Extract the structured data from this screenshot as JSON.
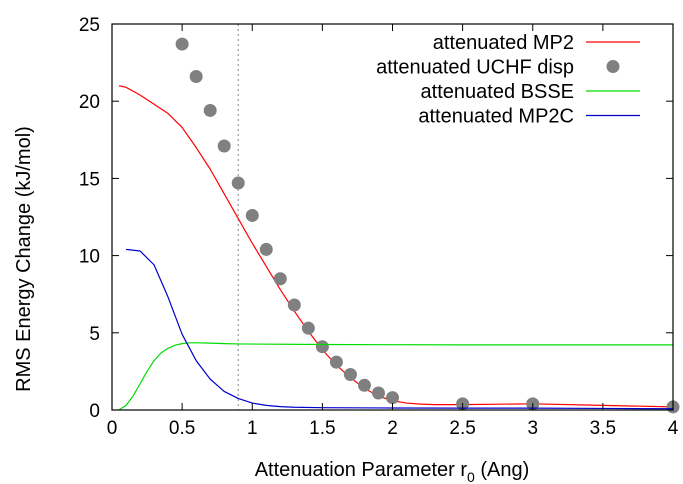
{
  "chart_data": {
    "type": "line",
    "title": "",
    "xlabel": "Attenuation Parameter r",
    "xlabel_subscript": "0",
    "xlabel_suffix": " (Ang)",
    "ylabel": "RMS Energy Change (kJ/mol)",
    "xlim": [
      0,
      4
    ],
    "ylim": [
      0,
      25
    ],
    "xticks": [
      0,
      0.5,
      1,
      1.5,
      2,
      2.5,
      3,
      3.5,
      4
    ],
    "xtick_labels": [
      "0",
      "0.5",
      "1",
      "1.5",
      "2",
      "2.5",
      "3",
      "3.5",
      "4"
    ],
    "yticks": [
      0,
      5,
      10,
      15,
      20,
      25
    ],
    "ytick_labels": [
      "0",
      "5",
      "10",
      "15",
      "20",
      "25"
    ],
    "grid": false,
    "legend_position": "top-right",
    "reference_line": {
      "x": 0.9,
      "style": "dotted",
      "color": "#999999"
    },
    "series": [
      {
        "name": "attenuated MP2",
        "kind": "line",
        "color": "#ff0000",
        "x": [
          0.05,
          0.1,
          0.2,
          0.3,
          0.4,
          0.5,
          0.6,
          0.7,
          0.8,
          0.9,
          1.0,
          1.1,
          1.2,
          1.3,
          1.4,
          1.5,
          1.6,
          1.7,
          1.8,
          1.9,
          2.0,
          2.1,
          2.2,
          2.3,
          2.5,
          3.0,
          3.5,
          4.0
        ],
        "y": [
          21.0,
          20.9,
          20.4,
          19.8,
          19.2,
          18.3,
          17.0,
          15.6,
          14.0,
          12.4,
          10.8,
          9.3,
          7.8,
          6.4,
          5.1,
          3.9,
          2.9,
          2.1,
          1.4,
          0.9,
          0.6,
          0.45,
          0.38,
          0.35,
          0.35,
          0.4,
          0.3,
          0.2
        ]
      },
      {
        "name": "attenuated UCHF disp",
        "kind": "points",
        "color": "#808080",
        "x": [
          0.5,
          0.6,
          0.7,
          0.8,
          0.9,
          1.0,
          1.1,
          1.2,
          1.3,
          1.4,
          1.5,
          1.6,
          1.7,
          1.8,
          1.9,
          2.0,
          2.5,
          3.0,
          4.0
        ],
        "y": [
          23.7,
          21.6,
          19.4,
          17.1,
          14.7,
          12.6,
          10.4,
          8.5,
          6.8,
          5.3,
          4.1,
          3.1,
          2.3,
          1.6,
          1.1,
          0.8,
          0.4,
          0.4,
          0.2
        ]
      },
      {
        "name": "attenuated BSSE",
        "kind": "line",
        "color": "#00dd00",
        "x": [
          0.05,
          0.1,
          0.15,
          0.2,
          0.25,
          0.3,
          0.35,
          0.4,
          0.45,
          0.5,
          0.55,
          0.6,
          0.7,
          0.8,
          0.9,
          1.0,
          1.5,
          2.0,
          2.5,
          3.0,
          3.5,
          4.0
        ],
        "y": [
          0.0,
          0.3,
          0.9,
          1.7,
          2.5,
          3.2,
          3.7,
          4.0,
          4.2,
          4.3,
          4.35,
          4.35,
          4.33,
          4.3,
          4.28,
          4.27,
          4.24,
          4.23,
          4.22,
          4.22,
          4.22,
          4.22
        ]
      },
      {
        "name": "attenuated MP2C",
        "kind": "line",
        "color": "#0000cc",
        "x": [
          0.1,
          0.2,
          0.3,
          0.4,
          0.5,
          0.6,
          0.7,
          0.8,
          0.9,
          1.0,
          1.1,
          1.2,
          1.3,
          1.5,
          2.0,
          2.5,
          3.0,
          3.5,
          4.0
        ],
        "y": [
          10.4,
          10.3,
          9.4,
          7.3,
          4.9,
          3.2,
          2.0,
          1.2,
          0.75,
          0.45,
          0.3,
          0.22,
          0.18,
          0.15,
          0.13,
          0.12,
          0.12,
          0.1,
          0.08
        ]
      }
    ]
  }
}
